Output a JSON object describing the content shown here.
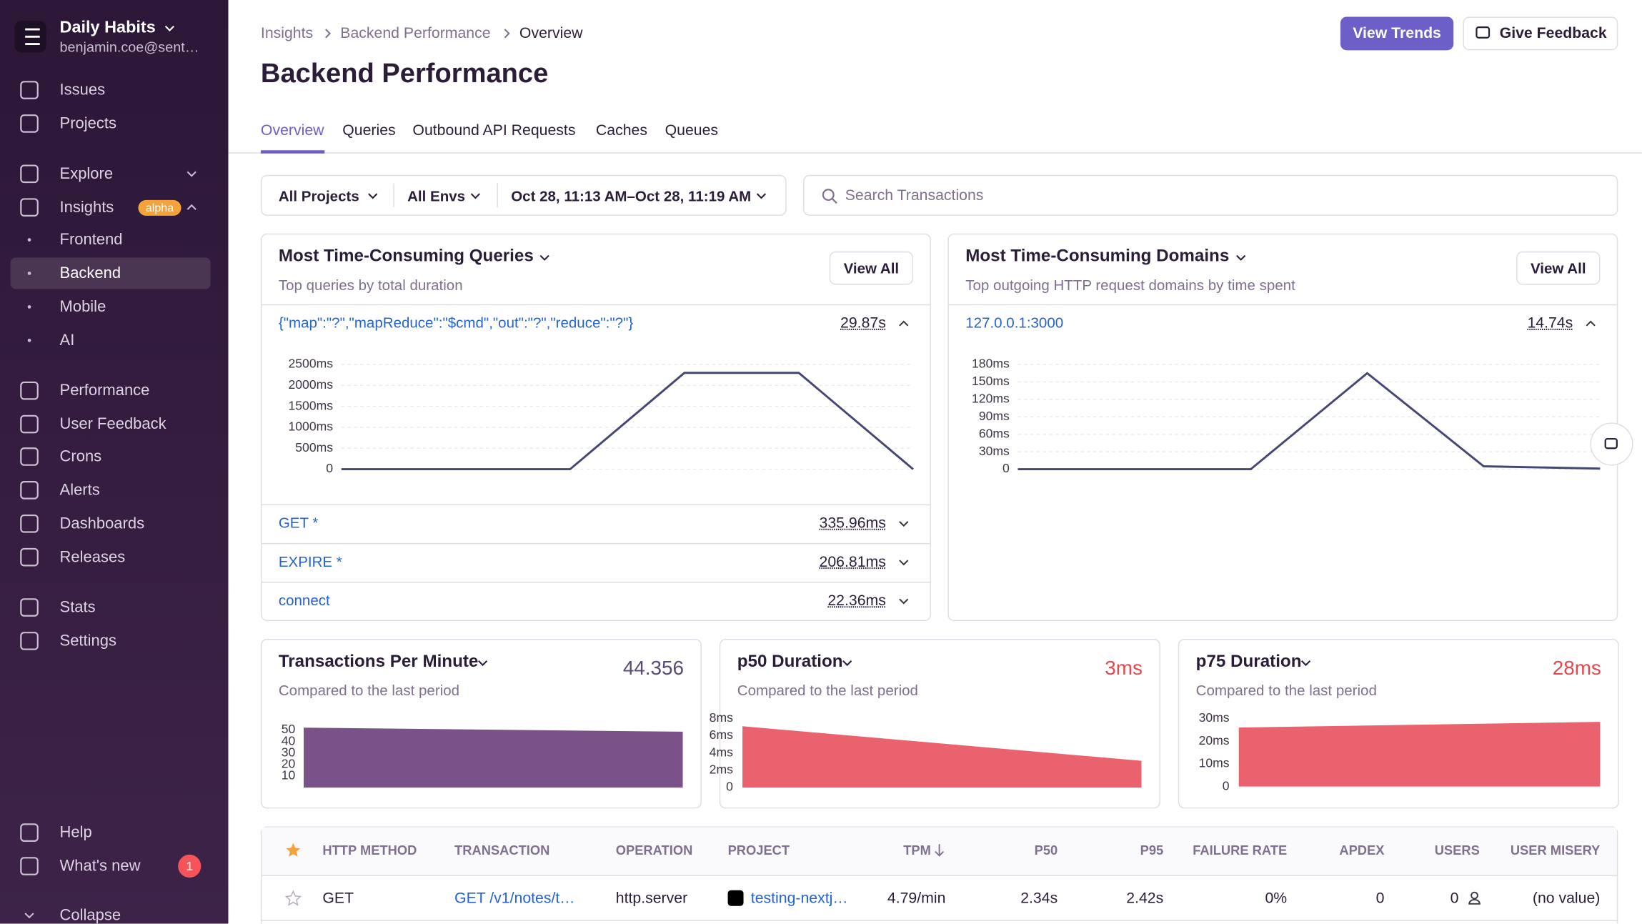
{
  "sidebar": {
    "org": "Daily Habits",
    "email": "benjamin.coe@sent…",
    "nav": [
      "Issues",
      "Projects",
      "Explore",
      "Insights",
      "Performance",
      "User Feedback",
      "Crons",
      "Alerts",
      "Dashboards",
      "Releases",
      "Stats",
      "Settings",
      "Help",
      "What's new",
      "Collapse"
    ],
    "insights_badge": "alpha",
    "sub": [
      "Frontend",
      "Backend",
      "Mobile",
      "AI"
    ],
    "whats_new_count": "1"
  },
  "header": {
    "breadcrumbs": [
      "Insights",
      "Backend Performance",
      "Overview"
    ],
    "title": "Backend Performance",
    "buttons": [
      "View Trends",
      "Give Feedback"
    ]
  },
  "tabs": [
    "Overview",
    "Queries",
    "Outbound API Requests",
    "Caches",
    "Queues"
  ],
  "filters": {
    "project": "All Projects",
    "env": "All Envs",
    "date": "Oct 28, 11:13 AM–Oct 28, 11:19 AM",
    "search": "Search Transactions"
  },
  "queries_panel": {
    "title": "Most Time-Consuming Queries",
    "subtitle": "Top queries by total duration",
    "view_all": "View All",
    "top": {
      "name": "{\"map\":\"?\",\"mapReduce\":\"$cmd\",\"out\":\"?\",\"reduce\":\"?\"}",
      "total": "29.87s"
    },
    "chart": {
      "type": "line",
      "color": "#444674",
      "grid": true,
      "ylim": [
        0,
        2500
      ],
      "yticks": [
        0,
        {
          "value": 500,
          "label": "500ms"
        },
        {
          "value": 1000,
          "label": "1000ms"
        },
        {
          "value": 1500,
          "label": "1500ms"
        },
        {
          "value": 2000,
          "label": "2000ms"
        },
        {
          "value": 2500,
          "label": "2500ms"
        }
      ],
      "values": [
        0,
        0,
        0,
        2300,
        2300,
        0
      ]
    },
    "rows": [
      {
        "name": "GET *",
        "total": "335.96ms"
      },
      {
        "name": "EXPIRE *",
        "total": "206.81ms"
      },
      {
        "name": "connect",
        "total": "22.36ms"
      }
    ]
  },
  "domains_panel": {
    "title": "Most Time-Consuming Domains",
    "subtitle": "Top outgoing HTTP request domains by time spent",
    "view_all": "View All",
    "top": {
      "name": "127.0.0.1:3000",
      "total": "14.74s"
    },
    "chart": {
      "type": "line",
      "color": "#444674",
      "grid": true,
      "ylim": [
        0,
        180
      ],
      "yticks": [
        0,
        {
          "value": 30,
          "label": "30ms"
        },
        {
          "value": 60,
          "label": "60ms"
        },
        {
          "value": 90,
          "label": "90ms"
        },
        {
          "value": 120,
          "label": "120ms"
        },
        {
          "value": 150,
          "label": "150ms"
        },
        {
          "value": 180,
          "label": "180ms"
        }
      ],
      "values": [
        0,
        0,
        0,
        165,
        5,
        1
      ]
    }
  },
  "metrics": [
    {
      "title": "Transactions Per Minute",
      "subtitle": "Compared to the last period",
      "value": "44.356",
      "value_color": "#5a4a74",
      "chart": {
        "type": "area",
        "color": "#7b5189",
        "grid": false,
        "ylim": [
          0,
          50
        ],
        "yticks": [
          10,
          20,
          30,
          40,
          50
        ],
        "values": [
          52,
          48.5
        ]
      }
    },
    {
      "title": "p50 Duration",
      "subtitle": "Compared to the last period",
      "value": "3ms",
      "value_color": "#e5484d",
      "chart": {
        "type": "area",
        "color": "#e9626e",
        "grid": false,
        "ylim": [
          0,
          8
        ],
        "yticks": [
          0,
          {
            "value": 2,
            "label": "2ms"
          },
          {
            "value": 4,
            "label": "4ms"
          },
          {
            "value": 6,
            "label": "6ms"
          },
          {
            "value": 8,
            "label": "8ms"
          }
        ],
        "values": [
          7.1,
          3.1
        ]
      }
    },
    {
      "title": "p75 Duration",
      "subtitle": "Compared to the last period",
      "value": "28ms",
      "value_color": "#e5484d",
      "chart": {
        "type": "area",
        "color": "#e9626e",
        "grid": false,
        "ylim": [
          0,
          30
        ],
        "yticks": [
          0,
          {
            "value": 10,
            "label": "10ms"
          },
          {
            "value": 20,
            "label": "20ms"
          },
          {
            "value": 30,
            "label": "30ms"
          }
        ],
        "values": [
          26,
          28.5
        ]
      }
    }
  ],
  "table": {
    "headers": [
      "HTTP METHOD",
      "TRANSACTION",
      "OPERATION",
      "PROJECT",
      "TPM",
      "P50",
      "P95",
      "FAILURE RATE",
      "APDEX",
      "USERS",
      "USER MISERY"
    ],
    "rows": [
      [
        "GET",
        "GET /v1/notes/t…",
        "http.server",
        "testing-nextj…",
        "4.79/min",
        "2.34s",
        "2.42s",
        "0%",
        "0",
        "0",
        "(no value)"
      ]
    ]
  }
}
